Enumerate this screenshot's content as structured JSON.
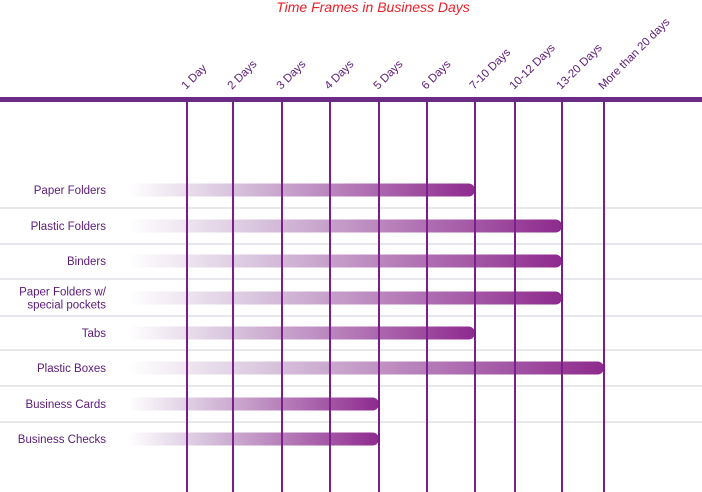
{
  "colors": {
    "title": "#e8202a",
    "axis": "#6b2a86",
    "grid": "#7a1f8a",
    "tick_text": "#5a1a78",
    "category_text": "#5a1a78",
    "bar_start": "#ffffff",
    "bar_end": "#8e2a8e",
    "row_separator": "#cfcfd8"
  },
  "chart_data": {
    "type": "bar",
    "orientation": "horizontal",
    "title": "Time Frames in Business Days",
    "xlabel": "",
    "ylabel": "",
    "grid": true,
    "legend": "none",
    "x_ticks": [
      "1 Day",
      "2 Days",
      "3 Days",
      "4 Days",
      "5 Days",
      "6 Days",
      "7-10 Days",
      "10-12 Days",
      "13-20 Days",
      "More than 20 days"
    ],
    "categories": [
      [
        "Paper Folders"
      ],
      [
        "Plastic Folders"
      ],
      [
        "Binders"
      ],
      [
        "Paper Folders w/",
        "special pockets"
      ],
      [
        "Tabs"
      ],
      [
        "Plastic Boxes"
      ],
      [
        "Business Cards"
      ],
      [
        "Business Checks"
      ]
    ],
    "values": [
      7,
      9,
      9,
      9,
      7,
      10,
      5,
      5
    ],
    "value_note": "each value is the 1-based index of the time-frame column where the bar ends"
  }
}
